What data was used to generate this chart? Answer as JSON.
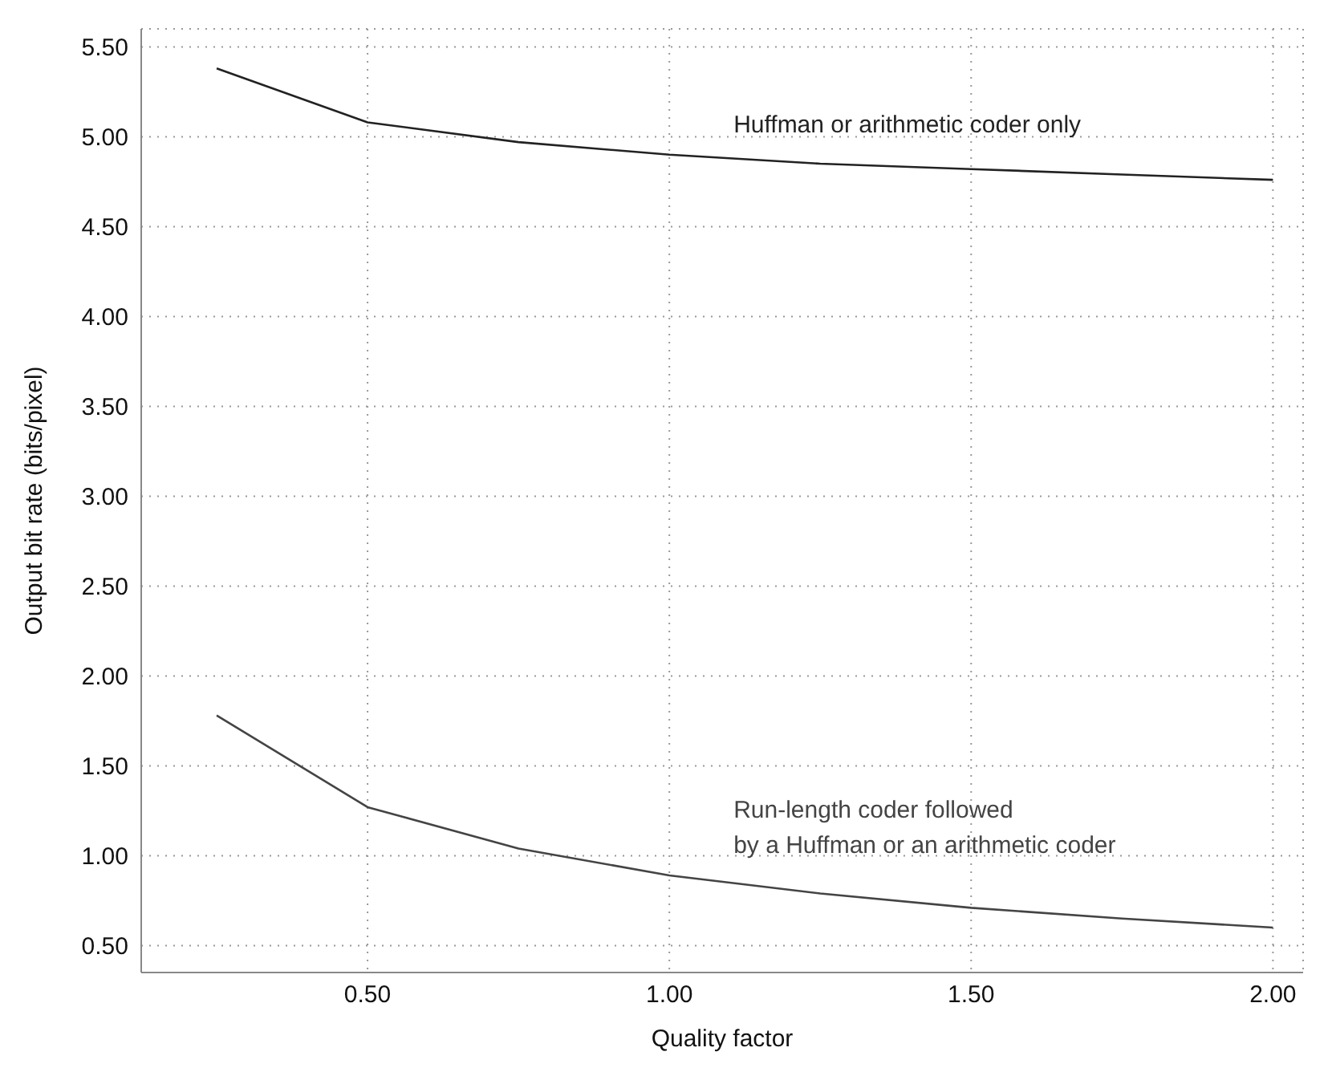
{
  "chart_data": {
    "type": "line",
    "xlabel": "Quality factor",
    "ylabel": "Output bit rate (bits/pixel)",
    "x": [
      0.25,
      0.5,
      0.75,
      1.0,
      1.25,
      1.5,
      1.75,
      2.0
    ],
    "series": [
      {
        "name": "Huffman or arithmetic coder only",
        "color": "#222222",
        "values": [
          5.38,
          5.08,
          4.97,
          4.9,
          4.85,
          4.82,
          4.79,
          4.76
        ]
      },
      {
        "name": "Run-length coder followed\nby a Huffman or an arithmetic coder",
        "color": "#444444",
        "values": [
          1.78,
          1.27,
          1.04,
          0.89,
          0.79,
          0.71,
          0.65,
          0.6
        ]
      }
    ],
    "xlim": [
      0.125,
      2.05
    ],
    "xticks": [
      {
        "value": 0.5,
        "label": "0.50"
      },
      {
        "value": 1,
        "label": "1.00"
      },
      {
        "value": 1.5,
        "label": "1.50"
      },
      {
        "value": 2,
        "label": "2.00"
      }
    ],
    "ylim": [
      0.35,
      5.6
    ],
    "yticks": [
      {
        "value": 0.5,
        "label": "0.50"
      },
      {
        "value": 1,
        "label": "1.00"
      },
      {
        "value": 1.5,
        "label": "1.50"
      },
      {
        "value": 2,
        "label": "2.00"
      },
      {
        "value": 2.5,
        "label": "2.50"
      },
      {
        "value": 3,
        "label": "3.00"
      },
      {
        "value": 3.5,
        "label": "3.50"
      },
      {
        "value": 4,
        "label": "4.00"
      },
      {
        "value": 4.5,
        "label": "4.50"
      },
      {
        "value": 5,
        "label": "5.00"
      },
      {
        "value": 5.5,
        "label": "5.50"
      }
    ],
    "grid": true,
    "marker": "none",
    "line_style": "solid"
  }
}
